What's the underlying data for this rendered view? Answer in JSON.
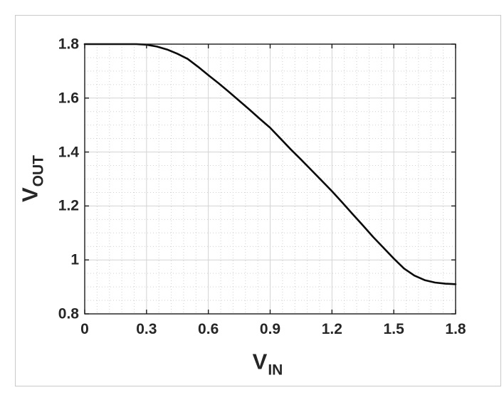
{
  "chart_data": {
    "type": "line",
    "title": "",
    "xlabel_main": "V",
    "xlabel_sub": "IN",
    "ylabel_main": "V",
    "ylabel_sub": "OUT",
    "xlim": [
      0,
      1.8
    ],
    "ylim": [
      0.8,
      1.8
    ],
    "xticks": [
      0,
      0.3,
      0.6,
      0.9,
      1.2,
      1.5,
      1.8
    ],
    "xtick_labels": [
      "0",
      "0.3",
      "0.6",
      "0.9",
      "1.2",
      "1.5",
      "1.8"
    ],
    "yticks": [
      0.8,
      1,
      1.2,
      1.4,
      1.6,
      1.8
    ],
    "ytick_labels": [
      "0.8",
      "1",
      "1.2",
      "1.4",
      "1.6",
      "1.8"
    ],
    "grid": "on",
    "minor_grid": "on",
    "minor_step_x": 0.06,
    "minor_step_y": 0.05,
    "legend": "none",
    "line_color": "#0a0a0a",
    "line_width": 2.6,
    "axis_color": "#1a1a1a",
    "grid_color": "#d3d3d3",
    "minor_grid_color": "#d0d0d0",
    "text_color": "#262626",
    "frame_color": "#c9c9c9",
    "background_color": "#ffffff",
    "series": [
      {
        "x": [
          0,
          0.05,
          0.1,
          0.15,
          0.2,
          0.25,
          0.3,
          0.35,
          0.4,
          0.45,
          0.5,
          0.55,
          0.6,
          0.65,
          0.7,
          0.75,
          0.8,
          0.85,
          0.9,
          0.95,
          1.0,
          1.05,
          1.1,
          1.15,
          1.2,
          1.25,
          1.3,
          1.35,
          1.4,
          1.45,
          1.5,
          1.55,
          1.6,
          1.65,
          1.7,
          1.75,
          1.8
        ],
        "y": [
          1.8,
          1.8,
          1.8,
          1.8,
          1.8,
          1.8,
          1.798,
          1.791,
          1.78,
          1.764,
          1.745,
          1.716,
          1.685,
          1.655,
          1.623,
          1.59,
          1.557,
          1.523,
          1.49,
          1.45,
          1.41,
          1.372,
          1.333,
          1.294,
          1.255,
          1.213,
          1.17,
          1.128,
          1.085,
          1.045,
          1.005,
          0.968,
          0.942,
          0.925,
          0.916,
          0.912,
          0.91
        ]
      }
    ]
  }
}
